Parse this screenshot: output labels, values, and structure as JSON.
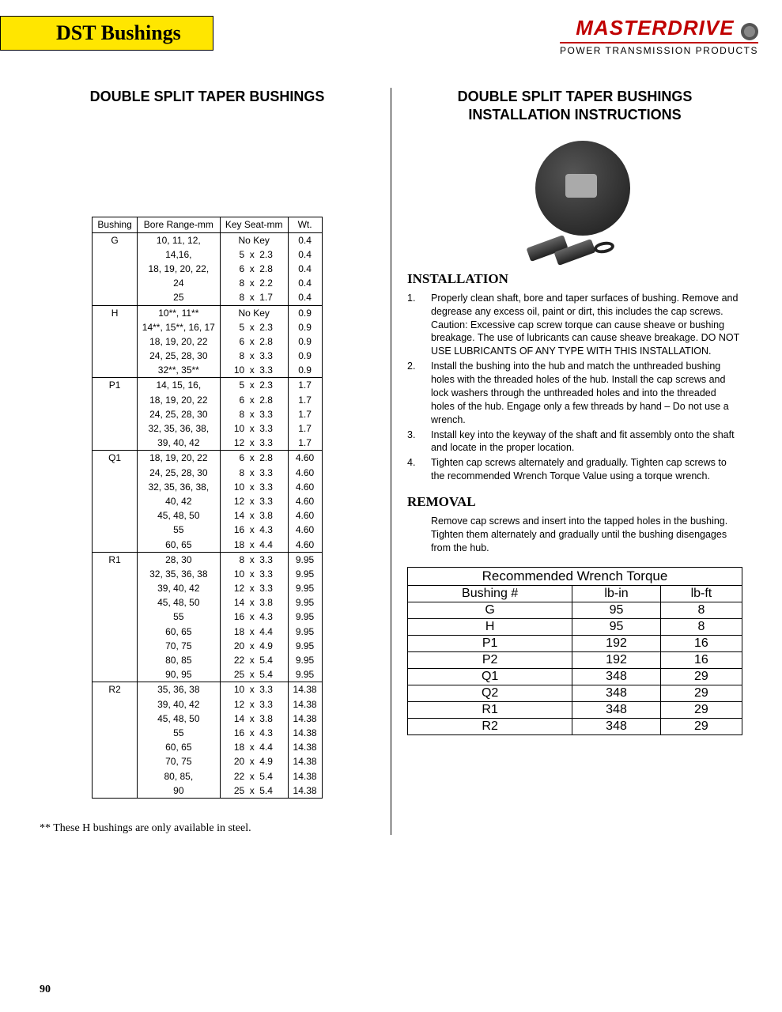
{
  "header": {
    "tab": "DST Bushings",
    "brand": "MASTERDRIVE",
    "brand_sub": "POWER TRANSMISSION PRODUCTS"
  },
  "left": {
    "title": "DOUBLE SPLIT TAPER BUSHINGS",
    "table": {
      "headers": [
        "Bushing",
        "Bore Range-mm",
        "Key Seat-mm",
        "Wt."
      ],
      "groups": [
        {
          "bushing": "G",
          "rows": [
            {
              "bore": "10, 11, 12,",
              "ks": [
                "",
                "No Key",
                ""
              ],
              "wt": "0.4"
            },
            {
              "bore": "14,16,",
              "ks": [
                "5",
                "x",
                "2.3"
              ],
              "wt": "0.4"
            },
            {
              "bore": "18, 19, 20, 22,",
              "ks": [
                "6",
                "x",
                "2.8"
              ],
              "wt": "0.4"
            },
            {
              "bore": "24",
              "ks": [
                "8",
                "x",
                "2.2"
              ],
              "wt": "0.4"
            },
            {
              "bore": "25",
              "ks": [
                "8",
                "x",
                "1.7"
              ],
              "wt": "0.4"
            }
          ]
        },
        {
          "bushing": "H",
          "rows": [
            {
              "bore": "10**, 11**",
              "ks": [
                "",
                "No Key",
                ""
              ],
              "wt": "0.9"
            },
            {
              "bore": "14**, 15**, 16, 17",
              "ks": [
                "5",
                "x",
                "2.3"
              ],
              "wt": "0.9"
            },
            {
              "bore": "18, 19, 20, 22",
              "ks": [
                "6",
                "x",
                "2.8"
              ],
              "wt": "0.9"
            },
            {
              "bore": "24, 25, 28, 30",
              "ks": [
                "8",
                "x",
                "3.3"
              ],
              "wt": "0.9"
            },
            {
              "bore": "32**, 35**",
              "ks": [
                "10",
                "x",
                "3.3"
              ],
              "wt": "0.9"
            }
          ]
        },
        {
          "bushing": "P1",
          "rows": [
            {
              "bore": "14, 15, 16,",
              "ks": [
                "5",
                "x",
                "2.3"
              ],
              "wt": "1.7"
            },
            {
              "bore": "18, 19, 20, 22",
              "ks": [
                "6",
                "x",
                "2.8"
              ],
              "wt": "1.7"
            },
            {
              "bore": "24, 25, 28, 30",
              "ks": [
                "8",
                "x",
                "3.3"
              ],
              "wt": "1.7"
            },
            {
              "bore": "32, 35, 36, 38,",
              "ks": [
                "10",
                "x",
                "3.3"
              ],
              "wt": "1.7"
            },
            {
              "bore": "39, 40, 42",
              "ks": [
                "12",
                "x",
                "3.3"
              ],
              "wt": "1.7"
            }
          ]
        },
        {
          "bushing": "Q1",
          "rows": [
            {
              "bore": "18, 19, 20, 22",
              "ks": [
                "6",
                "x",
                "2.8"
              ],
              "wt": "4.60"
            },
            {
              "bore": "24, 25, 28, 30",
              "ks": [
                "8",
                "x",
                "3.3"
              ],
              "wt": "4.60"
            },
            {
              "bore": "32, 35, 36, 38,",
              "ks": [
                "10",
                "x",
                "3.3"
              ],
              "wt": "4.60"
            },
            {
              "bore": "40, 42",
              "ks": [
                "12",
                "x",
                "3.3"
              ],
              "wt": "4.60"
            },
            {
              "bore": "45, 48, 50",
              "ks": [
                "14",
                "x",
                "3.8"
              ],
              "wt": "4.60"
            },
            {
              "bore": "55",
              "ks": [
                "16",
                "x",
                "4.3"
              ],
              "wt": "4.60"
            },
            {
              "bore": "60, 65",
              "ks": [
                "18",
                "x",
                "4.4"
              ],
              "wt": "4.60"
            }
          ]
        },
        {
          "bushing": "R1",
          "rows": [
            {
              "bore": "28, 30",
              "ks": [
                "8",
                "x",
                "3.3"
              ],
              "wt": "9.95"
            },
            {
              "bore": "32, 35, 36, 38",
              "ks": [
                "10",
                "x",
                "3.3"
              ],
              "wt": "9.95"
            },
            {
              "bore": "39, 40, 42",
              "ks": [
                "12",
                "x",
                "3.3"
              ],
              "wt": "9.95"
            },
            {
              "bore": "45, 48, 50",
              "ks": [
                "14",
                "x",
                "3.8"
              ],
              "wt": "9.95"
            },
            {
              "bore": "55",
              "ks": [
                "16",
                "x",
                "4.3"
              ],
              "wt": "9.95"
            },
            {
              "bore": "60, 65",
              "ks": [
                "18",
                "x",
                "4.4"
              ],
              "wt": "9.95"
            },
            {
              "bore": "70, 75",
              "ks": [
                "20",
                "x",
                "4.9"
              ],
              "wt": "9.95"
            },
            {
              "bore": "80, 85",
              "ks": [
                "22",
                "x",
                "5.4"
              ],
              "wt": "9.95"
            },
            {
              "bore": "90, 95",
              "ks": [
                "25",
                "x",
                "5.4"
              ],
              "wt": "9.95"
            }
          ]
        },
        {
          "bushing": "R2",
          "rows": [
            {
              "bore": "35, 36, 38",
              "ks": [
                "10",
                "x",
                "3.3"
              ],
              "wt": "14.38"
            },
            {
              "bore": "39, 40, 42",
              "ks": [
                "12",
                "x",
                "3.3"
              ],
              "wt": "14.38"
            },
            {
              "bore": "45, 48, 50",
              "ks": [
                "14",
                "x",
                "3.8"
              ],
              "wt": "14.38"
            },
            {
              "bore": "55",
              "ks": [
                "16",
                "x",
                "4.3"
              ],
              "wt": "14.38"
            },
            {
              "bore": "60, 65",
              "ks": [
                "18",
                "x",
                "4.4"
              ],
              "wt": "14.38"
            },
            {
              "bore": "70, 75",
              "ks": [
                "20",
                "x",
                "4.9"
              ],
              "wt": "14.38"
            },
            {
              "bore": "80, 85,",
              "ks": [
                "22",
                "x",
                "5.4"
              ],
              "wt": "14.38"
            },
            {
              "bore": "90",
              "ks": [
                "25",
                "x",
                "5.4"
              ],
              "wt": "14.38"
            }
          ]
        }
      ]
    },
    "footnote": "**   These H bushings are only available in steel."
  },
  "right": {
    "title": "DOUBLE SPLIT TAPER BUSHINGS INSTALLATION INSTRUCTIONS",
    "install_h": "INSTALLATION",
    "steps": [
      {
        "n": "1.",
        "t": "Properly clean shaft, bore and taper surfaces of bushing. Remove and degrease any excess oil, paint or dirt, this includes the cap screws.  Caution:  Excessive cap screw torque can cause sheave or bushing breakage.  The use of lubricants can cause sheave breakage.   DO NOT USE LUBRICANTS OF ANY TYPE WITH THIS INSTALLATION."
      },
      {
        "n": "2.",
        "t": "Install the bushing into the hub and match the unthreaded bushing holes with the threaded holes of the hub.  Install the cap screws and lock washers through the unthreaded holes and into the threaded holes of the hub.  Engage only a few threads by hand – Do not use a wrench."
      },
      {
        "n": "3.",
        "t": "Install key into the keyway of the shaft and fit assembly onto the shaft and locate in the proper location."
      },
      {
        "n": "4.",
        "t": "Tighten cap screws alternately and gradually.  Tighten cap screws to the recommended Wrench Torque Value using a torque wrench."
      }
    ],
    "removal_h": "REMOVAL",
    "removal_t": "Remove cap screws and insert into the tapped holes in the bushing. Tighten them alternately and gradually until the bushing disengages from the hub.",
    "torque": {
      "title": "Recommended Wrench Torque",
      "headers": [
        "Bushing #",
        "lb-in",
        "lb-ft"
      ],
      "rows": [
        [
          "G",
          "95",
          "8"
        ],
        [
          "H",
          "95",
          "8"
        ],
        [
          "P1",
          "192",
          "16"
        ],
        [
          "P2",
          "192",
          "16"
        ],
        [
          "Q1",
          "348",
          "29"
        ],
        [
          "Q2",
          "348",
          "29"
        ],
        [
          "R1",
          "348",
          "29"
        ],
        [
          "R2",
          "348",
          "29"
        ]
      ]
    }
  },
  "page_number": "90"
}
